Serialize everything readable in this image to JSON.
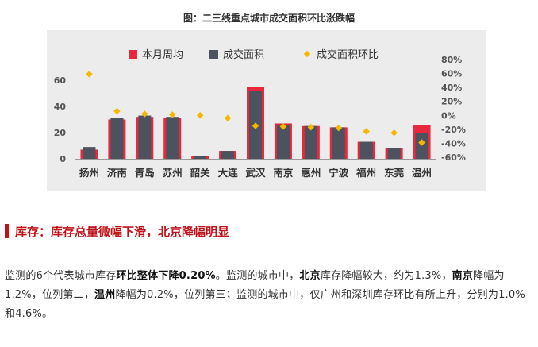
{
  "figure_title": "图：二三线重点城市成交面积环比涨跌幅",
  "chart_data": {
    "type": "bar",
    "categories": [
      "扬州",
      "济南",
      "青岛",
      "苏州",
      "韶关",
      "大连",
      "武汉",
      "南京",
      "惠州",
      "宁波",
      "福州",
      "东莞",
      "温州"
    ],
    "series": [
      {
        "name": "本月周均",
        "kind": "bar",
        "color": "#e8283c",
        "axis": "left",
        "values": [
          7,
          30,
          32,
          31,
          2,
          6,
          55,
          27,
          25,
          24,
          13,
          8,
          26
        ]
      },
      {
        "name": "成交面积",
        "kind": "bar",
        "color": "#4d535e",
        "axis": "left",
        "values": [
          9,
          31,
          33,
          32,
          2,
          6,
          52,
          26,
          25,
          24,
          13,
          8,
          20
        ]
      },
      {
        "name": "成交面积环比",
        "kind": "scatter",
        "color": "#f5b800",
        "axis": "right",
        "values": [
          59,
          6,
          2,
          1,
          0,
          -4,
          -15,
          -16,
          -17,
          -18,
          -23,
          -25,
          -39
        ]
      }
    ],
    "left_axis": {
      "ylim": [
        0,
        60
      ],
      "ticks": [
        "0",
        "20",
        "40",
        "60"
      ]
    },
    "right_axis": {
      "ylim": [
        -60,
        80
      ],
      "ticks": [
        "80%",
        "60%",
        "40%",
        "20%",
        "0%",
        "-20%",
        "-40%",
        "-60%"
      ]
    },
    "legend_position": "top",
    "grid": false
  },
  "section": {
    "title": "库存：库存总量微幅下滑，北京降幅明显"
  },
  "paragraph": {
    "p1": "监测的6个代表城市库存",
    "b1": "环比整体下降0.20%",
    "p2": "。监测的城市中，",
    "b2": "北京",
    "p3": "库存降幅较大，约为1.3%，",
    "b3": "南京",
    "p4": "降幅为1.2%，位列第二，",
    "b4": "温州",
    "p5": "降幅为0.2%，位列第三；监测的城市中，仅广州和深圳库存环比有所上升，分别为1.0%和4.6%。"
  }
}
